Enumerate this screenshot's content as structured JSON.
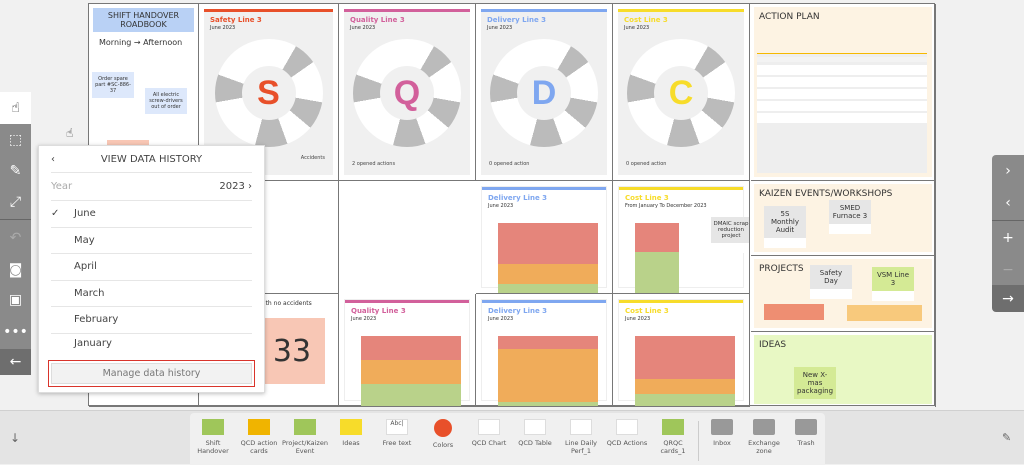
{
  "roadbook": {
    "title": "SHIFT HANDOVER ROADBOOK",
    "shift": "Morning → Afternoon",
    "notes": [
      "Order spare part #SC-886-37",
      "All electric screw-drivers out of order"
    ]
  },
  "wheels": [
    {
      "title": "Safety Line 3",
      "date": "June 2023",
      "letter": "S",
      "color": "#e8502a",
      "footer": "Accidents"
    },
    {
      "title": "Quality Line 3",
      "date": "June 2023",
      "letter": "Q",
      "color": "#d2609b",
      "footer": "2 opened actions"
    },
    {
      "title": "Delivery Line 3",
      "date": "June 2023",
      "letter": "D",
      "color": "#7fa7f0",
      "footer": "0 opened action"
    },
    {
      "title": "Cost Line 3",
      "date": "June 2023",
      "letter": "C",
      "color": "#f7dc2a",
      "footer": "0 opened action"
    }
  ],
  "charts": [
    {
      "title": "Delivery Line 3",
      "subtitle": "June 2023",
      "color": "#7fa7f0",
      "bands": [
        0.57,
        0.28,
        0.15
      ]
    },
    {
      "title": "Cost Line 3",
      "subtitle": "From January To December 2023",
      "color": "#f7dc2a",
      "note": "DMAIC scrap reduction project",
      "bands": [
        0.4,
        0,
        0.6
      ]
    },
    {
      "title": "Quality Line 3",
      "subtitle": "June 2023",
      "color": "#d2609b",
      "bands": [
        0.33,
        0.33,
        0.34
      ]
    },
    {
      "title": "Delivery Line 3",
      "subtitle": "June 2023",
      "color": "#7fa7f0",
      "bands": [
        0.18,
        0.73,
        0.09
      ]
    },
    {
      "title": "Cost Line 3",
      "subtitle": "June 2023",
      "color": "#f7dc2a",
      "bands": [
        0.6,
        0.2,
        0.2
      ]
    }
  ],
  "safety_counter": {
    "label": "with no accidents",
    "value": "33"
  },
  "sections": {
    "action_plan": {
      "title": "ACTION PLAN"
    },
    "kaizen": {
      "title": "KAIZEN EVENTS/WORKSHOPS",
      "notes": [
        "5S Monthly Audit",
        "SMED Furnace 3"
      ]
    },
    "projects": {
      "title": "PROJECTS",
      "notes": [
        "Safety Day",
        "VSM Line 3"
      ]
    },
    "ideas": {
      "title": "IDEAS",
      "notes": [
        "New X-mas packaging"
      ]
    }
  },
  "popup": {
    "title": "VIEW DATA HISTORY",
    "year_label": "Year",
    "year": "2023",
    "months": [
      "June",
      "May",
      "April",
      "March",
      "February",
      "January"
    ],
    "selected": "June",
    "manage": "Manage data history"
  },
  "tray": [
    "Shift Handover",
    "QCD action cards",
    "Project/Kaizen Event",
    "Ideas",
    "Free text",
    "Colors",
    "QCD Chart",
    "QCD Table",
    "Line Daily Perf_1",
    "QCD Actions",
    "QRQC cards_1"
  ],
  "tray_right": [
    "Inbox",
    "Exchange zone",
    "Trash"
  ],
  "free_text_icon": "Abc|"
}
